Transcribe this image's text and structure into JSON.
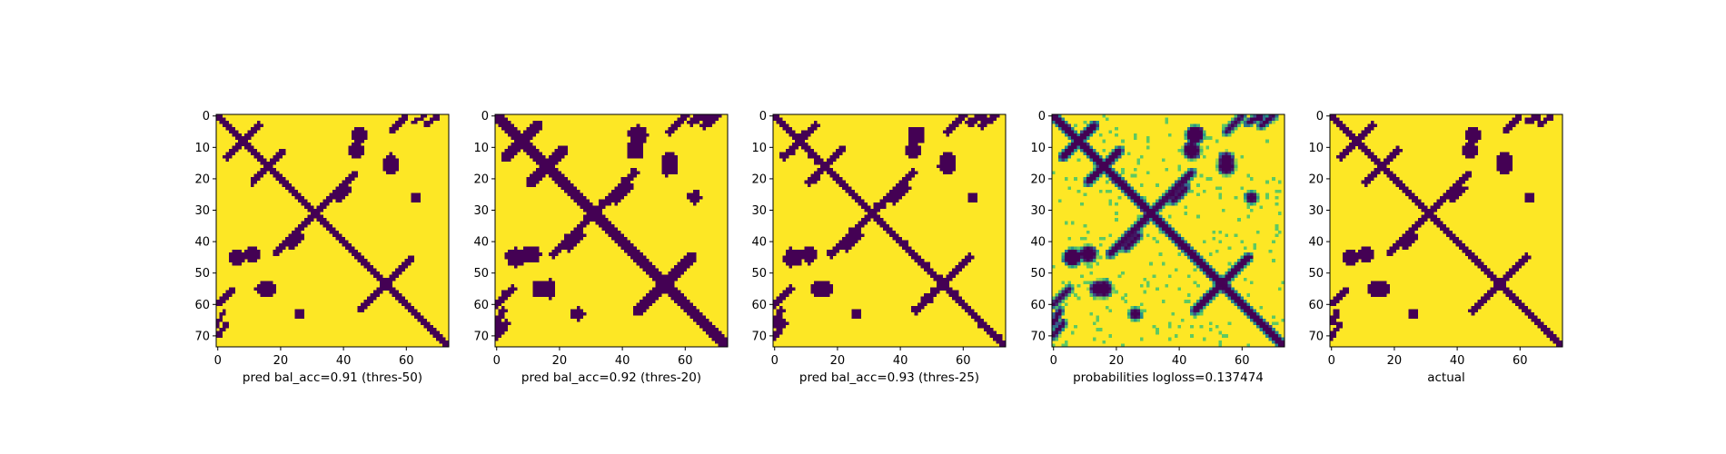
{
  "figure": {
    "background": "#ffffff"
  },
  "colors": {
    "low": "#440154",
    "mid": "#21918c",
    "light": "#addc30",
    "high": "#fde725"
  },
  "chart_data": [
    {
      "type": "heatmap",
      "panel": "thres-50",
      "xlabel": "pred bal_acc=0.91 (thres-50)",
      "matrix_size": 74,
      "xlim": [
        0,
        73
      ],
      "ylim": [
        73,
        0
      ],
      "x_ticks": [
        0,
        20,
        40,
        60
      ],
      "y_ticks": [
        0,
        10,
        20,
        30,
        40,
        50,
        60,
        70
      ],
      "colormap": "viridis",
      "values": "binary"
    },
    {
      "type": "heatmap",
      "panel": "thres-20",
      "xlabel": "pred bal_acc=0.92 (thres-20)",
      "matrix_size": 74,
      "xlim": [
        0,
        73
      ],
      "ylim": [
        73,
        0
      ],
      "x_ticks": [
        0,
        20,
        40,
        60
      ],
      "y_ticks": [
        0,
        10,
        20,
        30,
        40,
        50,
        60,
        70
      ],
      "colormap": "viridis",
      "values": "binary"
    },
    {
      "type": "heatmap",
      "panel": "thres-25",
      "xlabel": "pred bal_acc=0.93 (thres-25)",
      "matrix_size": 74,
      "xlim": [
        0,
        73
      ],
      "ylim": [
        73,
        0
      ],
      "x_ticks": [
        0,
        20,
        40,
        60
      ],
      "y_ticks": [
        0,
        10,
        20,
        30,
        40,
        50,
        60,
        70
      ],
      "colormap": "viridis",
      "values": "binary"
    },
    {
      "type": "heatmap",
      "panel": "probabilities",
      "xlabel": "probabilities logloss=0.137474",
      "matrix_size": 74,
      "xlim": [
        0,
        73
      ],
      "ylim": [
        73,
        0
      ],
      "x_ticks": [
        0,
        20,
        40,
        60
      ],
      "y_ticks": [
        0,
        10,
        20,
        30,
        40,
        50,
        60,
        70
      ],
      "colormap": "viridis",
      "values": "continuous"
    },
    {
      "type": "heatmap",
      "panel": "actual",
      "xlabel": "actual",
      "matrix_size": 74,
      "xlim": [
        0,
        73
      ],
      "ylim": [
        73,
        0
      ],
      "x_ticks": [
        0,
        20,
        40,
        60
      ],
      "y_ticks": [
        0,
        10,
        20,
        30,
        40,
        50,
        60,
        70
      ],
      "colormap": "viridis",
      "values": "binary"
    }
  ]
}
